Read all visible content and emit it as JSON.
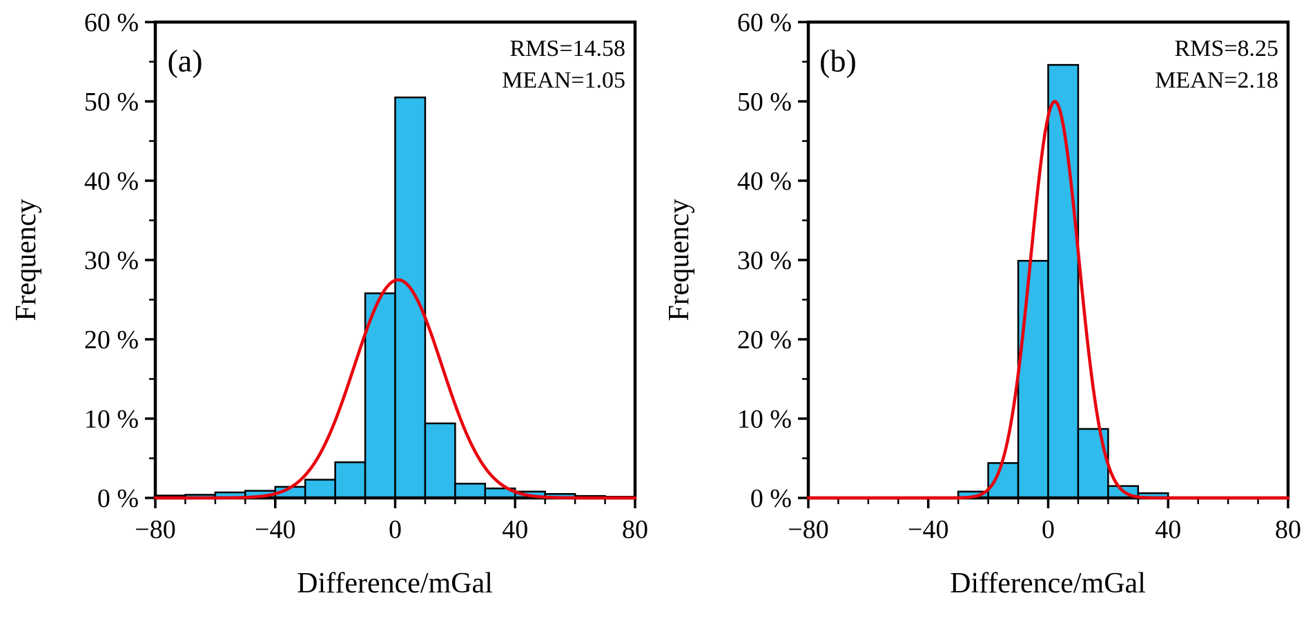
{
  "figure": {
    "background": "#ffffff",
    "axis_color": "#000000",
    "bar_fill": "#2fbbec",
    "bar_stroke": "#000000",
    "curve_color": "#e8000d"
  },
  "chart_data": [
    {
      "type": "bar",
      "panel_label": "(a)",
      "annotations": [
        "RMS=14.58",
        "MEAN=1.05"
      ],
      "rms": 14.58,
      "mean": 1.05,
      "xlabel": "Difference/mGal",
      "ylabel": "Frequency",
      "xlim": [
        -80,
        80
      ],
      "ylim": [
        0,
        60
      ],
      "x_major_ticks": [
        -80,
        -40,
        0,
        40,
        80
      ],
      "x_tick_labels": [
        "−80",
        "−40",
        "0",
        "40",
        "80"
      ],
      "x_minor_step": 10,
      "y_major_ticks": [
        0,
        10,
        20,
        30,
        40,
        50,
        60
      ],
      "y_tick_labels": [
        "0 %",
        "10 %",
        "20 %",
        "30 %",
        "40 %",
        "50 %",
        "60 %"
      ],
      "y_minor_step": 5,
      "bin_width": 10,
      "bin_left_edges": [
        -80,
        -70,
        -60,
        -50,
        -40,
        -30,
        -20,
        -10,
        0,
        10,
        20,
        30,
        40,
        50,
        60,
        70
      ],
      "values": [
        0.3,
        0.4,
        0.7,
        0.9,
        1.4,
        2.3,
        4.5,
        25.8,
        50.5,
        9.4,
        1.8,
        1.2,
        0.8,
        0.5,
        0.25,
        0.15
      ],
      "gauss": {
        "mu": 1.0,
        "sigma": 14.58,
        "peak": 27.5
      }
    },
    {
      "type": "bar",
      "panel_label": "(b)",
      "annotations": [
        "RMS=8.25",
        "MEAN=2.18"
      ],
      "rms": 8.25,
      "mean": 2.18,
      "xlabel": "Difference/mGal",
      "ylabel": "Frequency",
      "xlim": [
        -80,
        80
      ],
      "ylim": [
        0,
        60
      ],
      "x_major_ticks": [
        -80,
        -40,
        0,
        40,
        80
      ],
      "x_tick_labels": [
        "−80",
        "−40",
        "0",
        "40",
        "80"
      ],
      "x_minor_step": 10,
      "y_major_ticks": [
        0,
        10,
        20,
        30,
        40,
        50,
        60
      ],
      "y_tick_labels": [
        "0 %",
        "10 %",
        "20 %",
        "30 %",
        "40 %",
        "50 %",
        "60 %"
      ],
      "y_minor_step": 5,
      "bin_width": 10,
      "bin_left_edges": [
        -80,
        -70,
        -60,
        -50,
        -40,
        -30,
        -20,
        -10,
        0,
        10,
        20,
        30,
        40,
        50,
        60,
        70
      ],
      "values": [
        0,
        0,
        0,
        0,
        0,
        0.8,
        4.4,
        29.9,
        54.6,
        8.7,
        1.5,
        0.6,
        0,
        0,
        0,
        0
      ],
      "gauss": {
        "mu": 2.2,
        "sigma": 8.0,
        "peak": 50.0
      }
    }
  ]
}
